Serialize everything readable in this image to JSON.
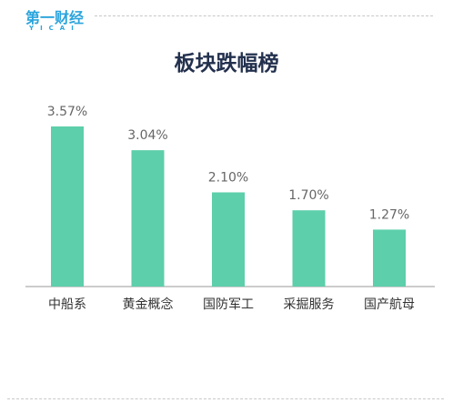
{
  "brand": {
    "name": "第一财经",
    "sub": "YICAI"
  },
  "colors": {
    "bar": "#5dcfaa",
    "label": "#666666",
    "title": "#23314e",
    "brand": "#2aa4dc"
  },
  "chart_data": {
    "type": "bar",
    "title": "板块跌幅榜",
    "categories": [
      "中船系",
      "黄金概念",
      "国防军工",
      "采掘服务",
      "国产航母"
    ],
    "values": [
      3.57,
      3.04,
      2.1,
      1.7,
      1.27
    ],
    "value_labels": [
      "3.57%",
      "3.04%",
      "2.10%",
      "1.70%",
      "1.27%"
    ],
    "ylim": [
      0,
      3.57
    ],
    "grid": false,
    "legend": "none"
  }
}
